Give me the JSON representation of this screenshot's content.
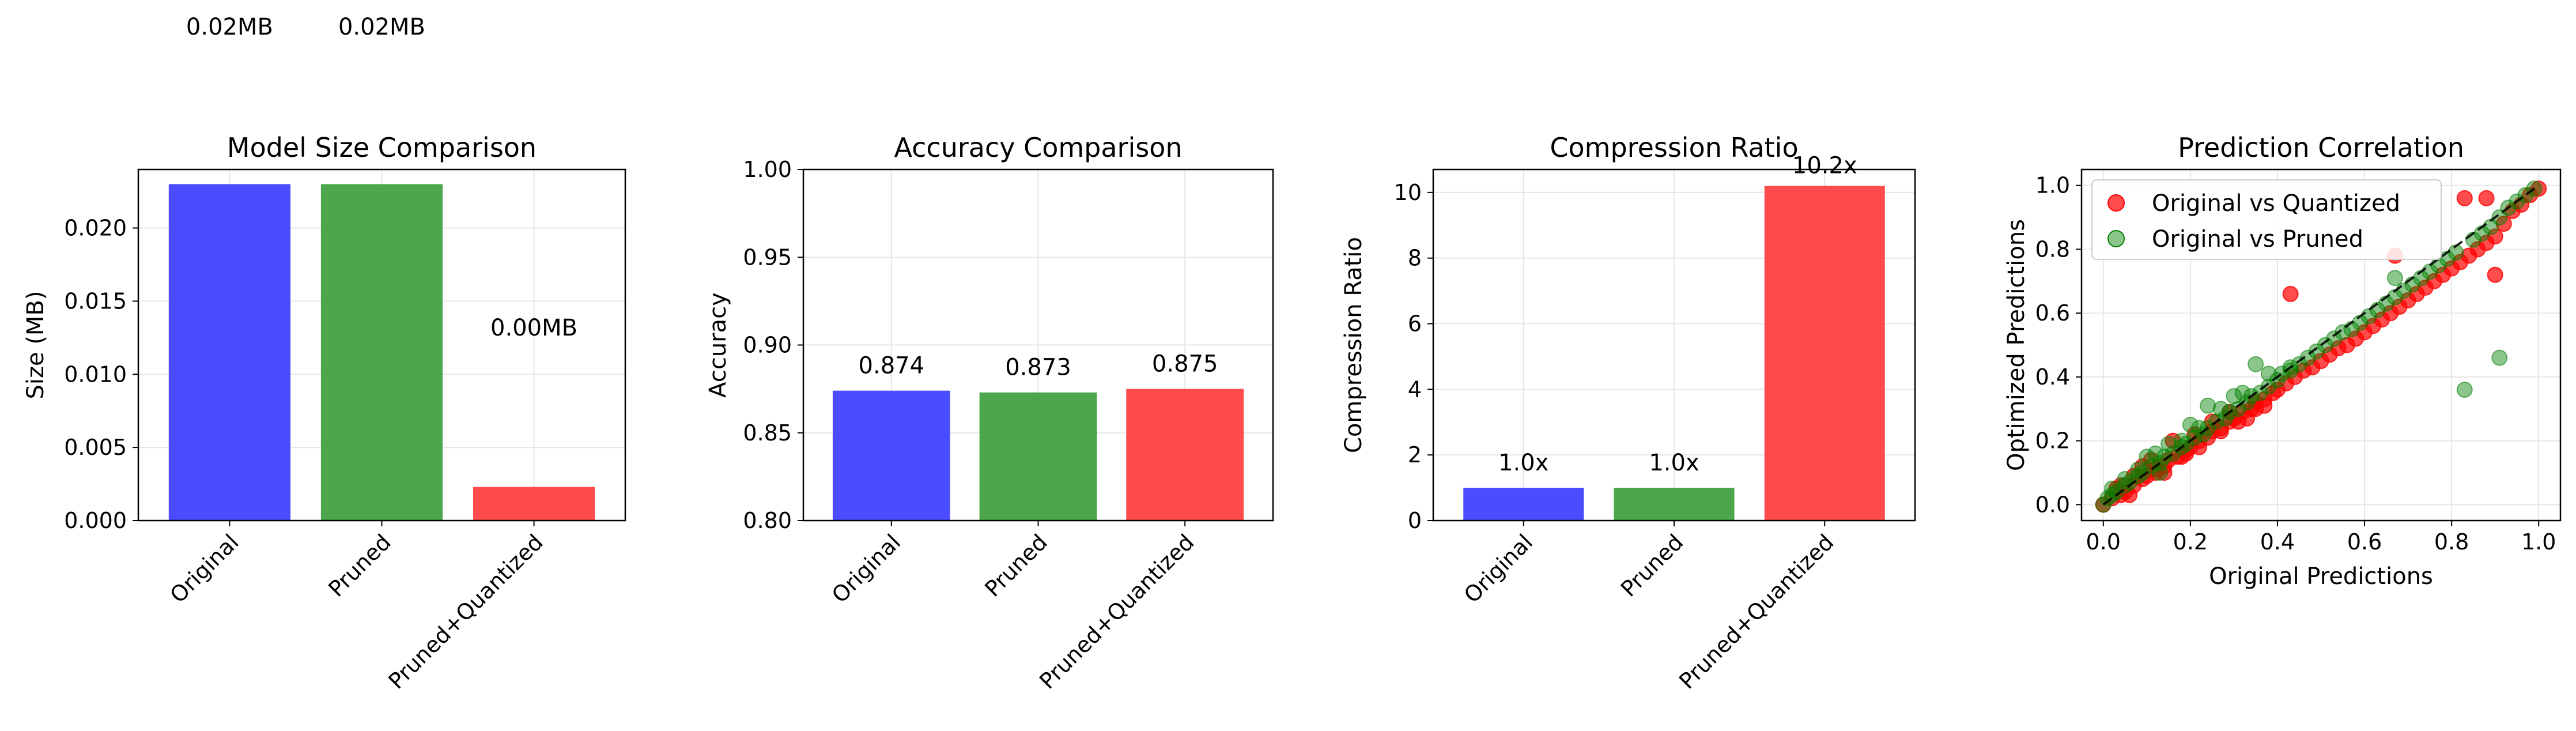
{
  "colors": {
    "blue": "#4b4bff",
    "green": "#4ca64c",
    "red": "#ff4b4b",
    "scatter_red": "#ff0000",
    "scatter_green": "#008000"
  },
  "chart_data": [
    {
      "type": "bar",
      "title": "Model Size Comparison",
      "xlabel": "",
      "ylabel": "Size (MB)",
      "categories": [
        "Original",
        "Pruned",
        "Pruned+Quantized"
      ],
      "values": [
        0.023,
        0.023,
        0.0023
      ],
      "data_labels": [
        "0.02MB",
        "0.02MB",
        "0.00MB"
      ],
      "ylim": [
        0,
        0.024
      ],
      "yticks": [
        "0.000",
        "0.005",
        "0.010",
        "0.015",
        "0.020"
      ],
      "grid": true
    },
    {
      "type": "bar",
      "title": "Accuracy Comparison",
      "xlabel": "",
      "ylabel": "Accuracy",
      "categories": [
        "Original",
        "Pruned",
        "Pruned+Quantized"
      ],
      "values": [
        0.874,
        0.873,
        0.875
      ],
      "data_labels": [
        "0.874",
        "0.873",
        "0.875"
      ],
      "ylim": [
        0.8,
        1.0
      ],
      "yticks": [
        "0.80",
        "0.85",
        "0.90",
        "0.95",
        "1.00"
      ],
      "grid": true
    },
    {
      "type": "bar",
      "title": "Compression Ratio",
      "xlabel": "",
      "ylabel": "Compression Ratio",
      "categories": [
        "Original",
        "Pruned",
        "Pruned+Quantized"
      ],
      "values": [
        1.0,
        1.0,
        10.2
      ],
      "data_labels": [
        "1.0x",
        "1.0x",
        "10.2x"
      ],
      "ylim": [
        0,
        10.7
      ],
      "yticks": [
        "0",
        "2",
        "4",
        "6",
        "8",
        "10"
      ],
      "grid": true
    },
    {
      "type": "scatter",
      "title": "Prediction Correlation",
      "xlabel": "Original Predictions",
      "ylabel": "Optimized Predictions",
      "xlim": [
        -0.05,
        1.05
      ],
      "ylim": [
        -0.05,
        1.05
      ],
      "xticks": [
        "0.0",
        "0.2",
        "0.4",
        "0.6",
        "0.8",
        "1.0"
      ],
      "yticks": [
        "0.0",
        "0.2",
        "0.4",
        "0.6",
        "0.8",
        "1.0"
      ],
      "legend": "top-left",
      "grid": true,
      "series": [
        {
          "name": "Original vs Quantized",
          "x": [
            0.0,
            0.02,
            0.04,
            0.05,
            0.07,
            0.09,
            0.1,
            0.12,
            0.14,
            0.15,
            0.17,
            0.19,
            0.2,
            0.22,
            0.24,
            0.25,
            0.27,
            0.29,
            0.3,
            0.32,
            0.34,
            0.35,
            0.37,
            0.39,
            0.4,
            0.42,
            0.44,
            0.46,
            0.48,
            0.5,
            0.52,
            0.54,
            0.56,
            0.58,
            0.6,
            0.62,
            0.64,
            0.66,
            0.68,
            0.7,
            0.72,
            0.74,
            0.76,
            0.78,
            0.8,
            0.82,
            0.84,
            0.86,
            0.88,
            0.9,
            0.92,
            0.94,
            0.96,
            0.98,
            1.0,
            0.83,
            0.88,
            0.67,
            0.9,
            0.43,
            0.29,
            0.07,
            0.12,
            0.03,
            0.18,
            0.21,
            0.33,
            0.37,
            0.25,
            0.14,
            0.06,
            0.09,
            0.16,
            0.22,
            0.31,
            0.04,
            0.11,
            0.27,
            0.35,
            0.19
          ],
          "y": [
            0.0,
            0.02,
            0.03,
            0.04,
            0.06,
            0.08,
            0.09,
            0.11,
            0.12,
            0.14,
            0.15,
            0.17,
            0.18,
            0.2,
            0.21,
            0.23,
            0.24,
            0.26,
            0.27,
            0.29,
            0.3,
            0.32,
            0.33,
            0.35,
            0.36,
            0.38,
            0.4,
            0.42,
            0.43,
            0.45,
            0.47,
            0.49,
            0.5,
            0.52,
            0.54,
            0.56,
            0.58,
            0.6,
            0.62,
            0.64,
            0.66,
            0.68,
            0.7,
            0.72,
            0.74,
            0.76,
            0.78,
            0.8,
            0.82,
            0.84,
            0.88,
            0.92,
            0.94,
            0.97,
            0.99,
            0.96,
            0.96,
            0.78,
            0.72,
            0.66,
            0.29,
            0.09,
            0.1,
            0.05,
            0.15,
            0.22,
            0.27,
            0.31,
            0.26,
            0.1,
            0.03,
            0.12,
            0.2,
            0.18,
            0.26,
            0.06,
            0.14,
            0.23,
            0.3,
            0.16
          ]
        },
        {
          "name": "Original vs Pruned",
          "x": [
            0.0,
            0.01,
            0.02,
            0.03,
            0.05,
            0.06,
            0.08,
            0.09,
            0.11,
            0.13,
            0.14,
            0.16,
            0.18,
            0.19,
            0.21,
            0.23,
            0.24,
            0.26,
            0.28,
            0.29,
            0.31,
            0.33,
            0.34,
            0.36,
            0.38,
            0.4,
            0.41,
            0.43,
            0.45,
            0.47,
            0.49,
            0.51,
            0.53,
            0.55,
            0.57,
            0.59,
            0.61,
            0.63,
            0.65,
            0.67,
            0.69,
            0.71,
            0.73,
            0.75,
            0.77,
            0.79,
            0.81,
            0.85,
            0.87,
            0.89,
            0.91,
            0.93,
            0.95,
            0.97,
            0.99,
            0.91,
            0.83,
            0.67,
            0.43,
            0.35,
            0.24,
            0.18,
            0.1,
            0.05,
            0.15,
            0.2,
            0.27,
            0.32,
            0.12,
            0.08,
            0.02,
            0.22,
            0.3,
            0.38,
            0.13
          ],
          "y": [
            0.0,
            0.02,
            0.03,
            0.04,
            0.06,
            0.07,
            0.09,
            0.1,
            0.12,
            0.13,
            0.15,
            0.16,
            0.18,
            0.19,
            0.21,
            0.22,
            0.24,
            0.26,
            0.27,
            0.29,
            0.3,
            0.32,
            0.34,
            0.35,
            0.37,
            0.39,
            0.41,
            0.43,
            0.44,
            0.46,
            0.48,
            0.5,
            0.52,
            0.54,
            0.55,
            0.57,
            0.59,
            0.61,
            0.63,
            0.65,
            0.67,
            0.69,
            0.71,
            0.73,
            0.75,
            0.77,
            0.79,
            0.83,
            0.85,
            0.87,
            0.9,
            0.93,
            0.95,
            0.97,
            0.99,
            0.46,
            0.36,
            0.71,
            0.42,
            0.44,
            0.31,
            0.2,
            0.15,
            0.08,
            0.19,
            0.25,
            0.3,
            0.35,
            0.16,
            0.11,
            0.05,
            0.24,
            0.34,
            0.41,
            0.1
          ]
        }
      ]
    }
  ]
}
